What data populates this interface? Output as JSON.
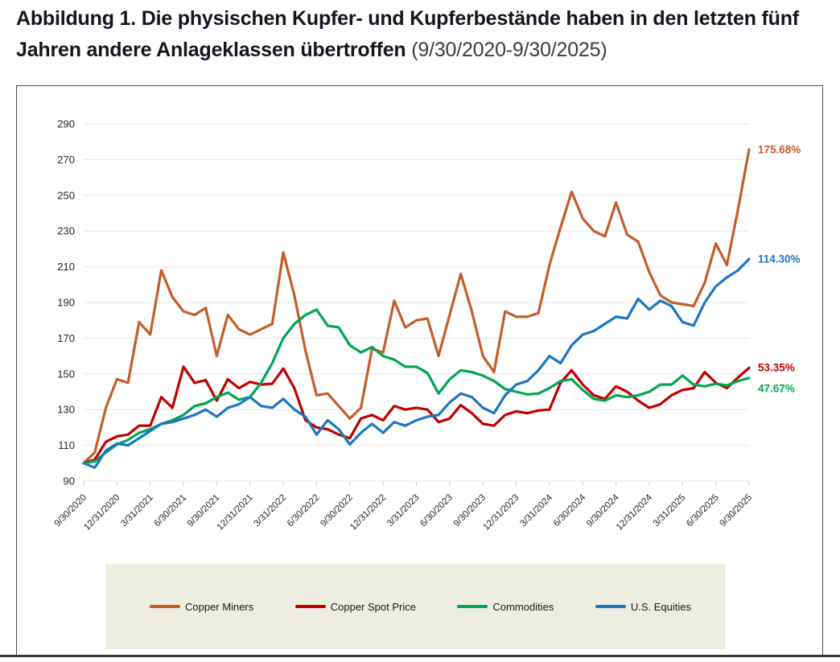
{
  "title": {
    "line1": "Abbildung 1. Die physischen Kupfer- und Kupferbestände haben in den letzten fünf",
    "line2_bold": "Jahren andere Anlageklassen übertroffen",
    "line2_regular": "(9/30/2020-9/30/2025)"
  },
  "chart_data": {
    "type": "line",
    "title": "Die physischen Kupfer- und Kupferbestände haben in den letzten fünf Jahren andere Anlageklassen übertroffen",
    "period": "9/30/2020-9/30/2025",
    "frequency": "monthly",
    "x_tick_labels": [
      "9/30/2020",
      "12/31/2020",
      "3/31/2021",
      "6/30/2021",
      "9/30/2021",
      "12/31/2021",
      "3/31/2022",
      "6/30/2022",
      "9/30/2022",
      "12/31/2022",
      "3/31/2023",
      "6/30/2023",
      "9/30/2023",
      "12/31/2023",
      "3/31/2024",
      "6/30/2024",
      "9/30/2024",
      "12/31/2024",
      "3/31/2025",
      "6/30/2025",
      "9/30/2025"
    ],
    "months_per_x_tick": 3,
    "ylim": [
      90,
      290
    ],
    "y_tick_labels": [
      90,
      110,
      130,
      150,
      170,
      190,
      210,
      230,
      250,
      270,
      290
    ],
    "grid": "horizontal",
    "legend_position": "bottom",
    "series": [
      {
        "name": "Copper Miners",
        "slug": "copper-miners",
        "color": "#c35e2b",
        "end_label": "175.68%",
        "end_label_offset": 0,
        "values": [
          100,
          106,
          131,
          147,
          145,
          179,
          172,
          208,
          193,
          185,
          183,
          187,
          160,
          183,
          175,
          172,
          175,
          178,
          218,
          194,
          163,
          138,
          139,
          132,
          125,
          131,
          164,
          162,
          191,
          176,
          180,
          181,
          160,
          183,
          206,
          185,
          160,
          151,
          185,
          182,
          182,
          184,
          211,
          232,
          252,
          237,
          230,
          227,
          246,
          228,
          224,
          207,
          194,
          190,
          189,
          188,
          201,
          223,
          211,
          242,
          275.68
        ]
      },
      {
        "name": "Copper Spot Price",
        "slug": "copper-spot-price",
        "color": "#c00000",
        "end_label": "53.35%",
        "end_label_offset": 0,
        "values": [
          100,
          102,
          112,
          115,
          116,
          121,
          121,
          137,
          131,
          154,
          145,
          146.5,
          135,
          147,
          142,
          145.5,
          144,
          144.5,
          153,
          142,
          124,
          120,
          119,
          116,
          114,
          125,
          127,
          124,
          132,
          130,
          131,
          130,
          123,
          125,
          132.5,
          128,
          122,
          121,
          127,
          129,
          128,
          129.5,
          130,
          145,
          152,
          144,
          138,
          136,
          143,
          140,
          135,
          131,
          133,
          138,
          141,
          142,
          151,
          145,
          142,
          148,
          153.35
        ]
      },
      {
        "name": "Commodities",
        "slug": "commodities",
        "color": "#00a651",
        "end_label": "47.67%",
        "end_label_offset": 13,
        "values": [
          100,
          101,
          106,
          110.5,
          113,
          117,
          119,
          122,
          124,
          127,
          132,
          133.5,
          137,
          139.5,
          135.5,
          137,
          145,
          156,
          170,
          178,
          183,
          186,
          177,
          176,
          166,
          162,
          165,
          160,
          158,
          154,
          154,
          150.5,
          139,
          147,
          152,
          151,
          149,
          146,
          141.5,
          140,
          138.5,
          139,
          142,
          146,
          147,
          141,
          136,
          135,
          138,
          137,
          138,
          140,
          144,
          144,
          149,
          144,
          143,
          144.5,
          143.5,
          146,
          147.67
        ]
      },
      {
        "name": "U.S. Equities",
        "slug": "us-equities",
        "color": "#1d76c2",
        "end_label": "114.30%",
        "end_label_offset": 0,
        "values": [
          100,
          97.5,
          107,
          111,
          110,
          114,
          118,
          122,
          123,
          125,
          127,
          130,
          126,
          131,
          133,
          137,
          132,
          131,
          136,
          130,
          126,
          116,
          124,
          119,
          110.5,
          117,
          122,
          117,
          123,
          121,
          124,
          126,
          127,
          134,
          139,
          137,
          131,
          128,
          138,
          144,
          146,
          152,
          160,
          156,
          166,
          172,
          174,
          178,
          182,
          181,
          192,
          186,
          191,
          188,
          179,
          177,
          190,
          199,
          204,
          208,
          214.3
        ]
      }
    ]
  }
}
